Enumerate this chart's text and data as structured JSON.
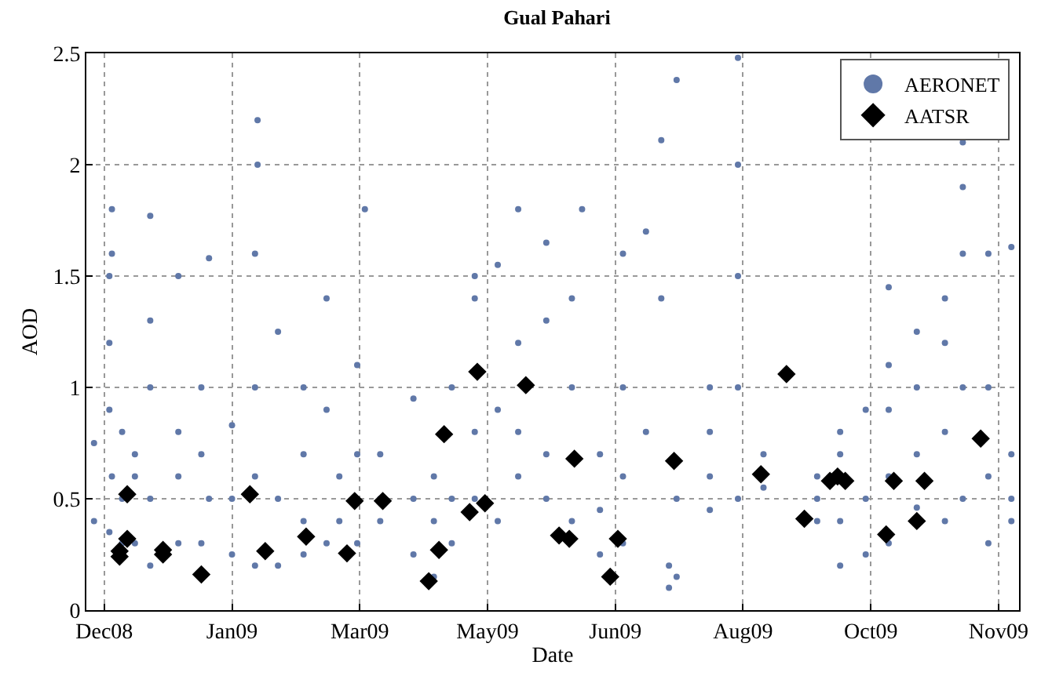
{
  "chart_data": {
    "type": "scatter",
    "title": "Gual Pahari",
    "xlabel": "Date",
    "ylabel": "AOD",
    "xlim": [
      "2008-11-28",
      "2009-11-28"
    ],
    "xticks": [
      {
        "value": "2008-12-05",
        "label": "Dec08"
      },
      {
        "value": "2009-01-24",
        "label": "Jan09"
      },
      {
        "value": "2009-03-15",
        "label": "Mar09"
      },
      {
        "value": "2009-05-04",
        "label": "May09"
      },
      {
        "value": "2009-06-23",
        "label": "Jun09"
      },
      {
        "value": "2009-08-12",
        "label": "Aug09"
      },
      {
        "value": "2009-10-01",
        "label": "Oct09"
      },
      {
        "value": "2009-11-20",
        "label": "Nov09"
      }
    ],
    "ylim": [
      0,
      2.5
    ],
    "yticks": [
      0,
      0.5,
      1,
      1.5,
      2,
      2.5
    ],
    "grid": true,
    "legend": "top right",
    "series": [
      {
        "name": "AERONET",
        "color": "#6078a8",
        "marker": "circle",
        "x": [
          "2008-12-01",
          "2008-12-01",
          "2008-12-07",
          "2008-12-07",
          "2008-12-07",
          "2008-12-07",
          "2008-12-08",
          "2008-12-08",
          "2008-12-08",
          "2008-12-12",
          "2008-12-12",
          "2008-12-12",
          "2008-12-17",
          "2008-12-17",
          "2008-12-17",
          "2008-12-23",
          "2008-12-23",
          "2008-12-23",
          "2008-12-23",
          "2008-12-23",
          "2009-01-03",
          "2009-01-03",
          "2009-01-03",
          "2009-01-03",
          "2009-01-12",
          "2009-01-12",
          "2009-01-12",
          "2009-01-15",
          "2009-01-15",
          "2009-01-24",
          "2009-01-24",
          "2009-01-24",
          "2009-02-02",
          "2009-02-02",
          "2009-02-02",
          "2009-02-02",
          "2009-02-03",
          "2009-02-03",
          "2009-02-11",
          "2009-02-11",
          "2009-02-11",
          "2009-02-21",
          "2009-02-21",
          "2009-02-21",
          "2009-02-21",
          "2009-03-02",
          "2009-03-02",
          "2009-03-02",
          "2009-03-07",
          "2009-03-07",
          "2009-03-14",
          "2009-03-14",
          "2009-03-14",
          "2009-03-17",
          "2009-03-23",
          "2009-03-23",
          "2009-03-23",
          "2009-04-05",
          "2009-04-05",
          "2009-04-05",
          "2009-04-13",
          "2009-04-13",
          "2009-04-13",
          "2009-04-20",
          "2009-04-20",
          "2009-04-20",
          "2009-04-29",
          "2009-04-29",
          "2009-04-29",
          "2009-04-29",
          "2009-05-08",
          "2009-05-08",
          "2009-05-08",
          "2009-05-16",
          "2009-05-16",
          "2009-05-16",
          "2009-05-16",
          "2009-05-27",
          "2009-05-27",
          "2009-05-27",
          "2009-05-27",
          "2009-06-06",
          "2009-06-06",
          "2009-06-06",
          "2009-06-10",
          "2009-06-17",
          "2009-06-17",
          "2009-06-17",
          "2009-06-26",
          "2009-06-26",
          "2009-06-26",
          "2009-06-26",
          "2009-07-05",
          "2009-07-05",
          "2009-07-11",
          "2009-07-11",
          "2009-07-14",
          "2009-07-14",
          "2009-07-17",
          "2009-07-17",
          "2009-07-17",
          "2009-07-30",
          "2009-07-30",
          "2009-07-30",
          "2009-07-30",
          "2009-08-10",
          "2009-08-10",
          "2009-08-10",
          "2009-08-10",
          "2009-08-10",
          "2009-08-20",
          "2009-08-20",
          "2009-09-10",
          "2009-09-10",
          "2009-09-10",
          "2009-09-19",
          "2009-09-19",
          "2009-09-19",
          "2009-09-19",
          "2009-09-29",
          "2009-09-29",
          "2009-09-29",
          "2009-10-08",
          "2009-10-08",
          "2009-10-08",
          "2009-10-08",
          "2009-10-08",
          "2009-10-19",
          "2009-10-19",
          "2009-10-19",
          "2009-10-19",
          "2009-10-30",
          "2009-10-30",
          "2009-10-30",
          "2009-10-30",
          "2009-11-06",
          "2009-11-06",
          "2009-11-06",
          "2009-11-06",
          "2009-11-06",
          "2009-11-16",
          "2009-11-16",
          "2009-11-16",
          "2009-11-16",
          "2009-11-25",
          "2009-11-25",
          "2009-11-25",
          "2009-11-25"
        ],
        "values": [
          0.4,
          0.75,
          0.35,
          0.9,
          1.2,
          1.5,
          1.8,
          1.6,
          0.6,
          0.3,
          0.5,
          0.8,
          0.3,
          0.6,
          0.7,
          0.2,
          0.5,
          1.0,
          1.3,
          1.77,
          0.3,
          0.8,
          1.5,
          0.6,
          0.3,
          0.7,
          1.0,
          1.58,
          0.5,
          0.25,
          0.5,
          0.83,
          0.2,
          0.6,
          1.0,
          1.6,
          2.0,
          2.2,
          0.2,
          0.5,
          1.25,
          0.25,
          0.4,
          0.7,
          1.0,
          0.3,
          1.4,
          0.9,
          0.6,
          0.4,
          0.3,
          0.7,
          1.1,
          1.8,
          0.4,
          0.7,
          0.5,
          0.25,
          0.5,
          0.95,
          0.15,
          0.4,
          0.6,
          0.3,
          0.5,
          1.0,
          0.5,
          0.8,
          1.5,
          1.4,
          0.4,
          0.9,
          1.55,
          0.6,
          0.8,
          1.8,
          1.2,
          0.5,
          0.7,
          1.3,
          1.65,
          0.4,
          1.0,
          1.4,
          1.8,
          0.25,
          0.45,
          0.7,
          0.3,
          0.6,
          1.0,
          1.6,
          1.7,
          0.8,
          2.11,
          1.4,
          0.1,
          0.2,
          2.38,
          0.5,
          0.15,
          0.6,
          0.8,
          1.0,
          0.45,
          0.5,
          1.0,
          1.5,
          2.0,
          2.48,
          0.55,
          0.7,
          0.4,
          0.6,
          0.5,
          0.2,
          0.4,
          0.7,
          0.8,
          0.25,
          0.5,
          0.9,
          0.3,
          0.6,
          0.9,
          1.1,
          1.45,
          0.46,
          0.7,
          1.0,
          1.25,
          0.4,
          0.8,
          1.2,
          1.4,
          0.5,
          1.0,
          1.6,
          2.1,
          1.9,
          0.3,
          0.6,
          1.0,
          1.6,
          0.4,
          0.5,
          0.7,
          1.63
        ]
      },
      {
        "name": "AATSR",
        "color": "#000000",
        "marker": "diamond",
        "x": [
          "2008-12-11",
          "2008-12-11",
          "2008-12-14",
          "2008-12-14",
          "2008-12-28",
          "2008-12-28",
          "2009-01-12",
          "2009-01-31",
          "2009-02-06",
          "2009-02-22",
          "2009-03-10",
          "2009-03-13",
          "2009-03-24",
          "2009-04-11",
          "2009-04-15",
          "2009-04-17",
          "2009-04-27",
          "2009-04-30",
          "2009-05-03",
          "2009-05-19",
          "2009-06-07",
          "2009-06-01",
          "2009-06-05",
          "2009-06-21",
          "2009-06-24",
          "2009-07-16",
          "2009-08-19",
          "2009-08-29",
          "2009-09-05",
          "2009-09-15",
          "2009-09-18",
          "2009-09-21",
          "2009-10-07",
          "2009-10-10",
          "2009-10-19",
          "2009-10-22",
          "2009-11-13"
        ],
        "values": [
          0.265,
          0.24,
          0.52,
          0.32,
          0.27,
          0.25,
          0.16,
          0.52,
          0.265,
          0.33,
          0.255,
          0.49,
          0.49,
          0.13,
          0.27,
          0.79,
          0.44,
          1.07,
          0.48,
          1.01,
          0.68,
          0.335,
          0.32,
          0.15,
          0.32,
          0.67,
          0.61,
          1.06,
          0.41,
          0.58,
          0.6,
          0.58,
          0.34,
          0.58,
          0.4,
          0.58,
          0.77
        ]
      }
    ]
  }
}
